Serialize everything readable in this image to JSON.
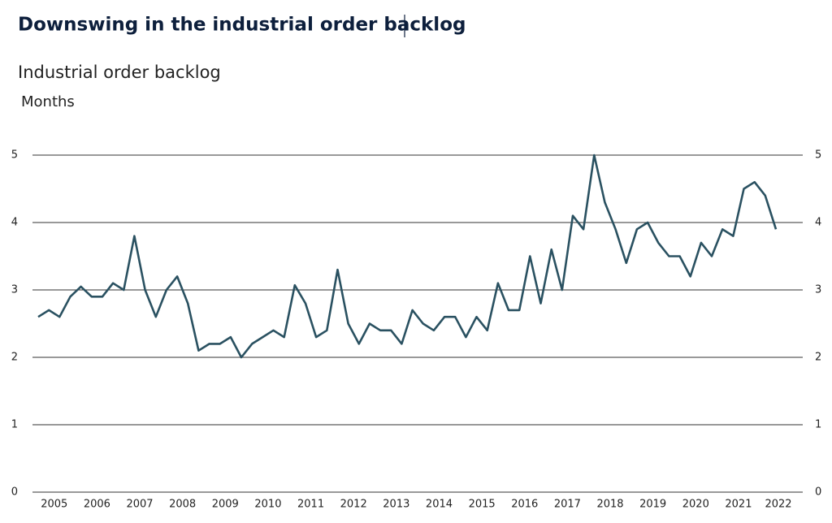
{
  "chart_data": {
    "type": "line",
    "title": "Downswing in the industrial order backlog",
    "subtitle": "Industrial order backlog",
    "y_label": "Months",
    "categories": [
      "2005",
      null,
      null,
      null,
      "2006",
      null,
      null,
      null,
      "2007",
      null,
      null,
      null,
      "2008",
      null,
      null,
      null,
      "2009",
      null,
      null,
      null,
      "2010",
      null,
      null,
      null,
      "2011",
      null,
      null,
      null,
      "2012",
      null,
      null,
      null,
      "2013",
      null,
      null,
      null,
      "2014",
      null,
      null,
      null,
      "2015",
      null,
      null,
      null,
      "2016",
      null,
      null,
      null,
      "2017",
      null,
      null,
      null,
      "2018",
      null,
      null,
      null,
      "2019",
      null,
      null,
      null,
      "2020",
      null,
      null,
      null,
      "2021",
      null,
      null,
      null,
      "2022",
      null
    ],
    "series": [
      {
        "name": "Industrial order backlog",
        "color": "#2a5161",
        "values": [
          2.6,
          2.7,
          2.6,
          2.9,
          3.05,
          2.9,
          2.9,
          3.1,
          3.0,
          3.8,
          3.0,
          2.6,
          3.0,
          3.2,
          2.8,
          2.1,
          2.2,
          2.2,
          2.3,
          2.0,
          2.2,
          2.3,
          2.4,
          2.3,
          3.07,
          2.8,
          2.3,
          2.4,
          3.3,
          2.5,
          2.2,
          2.5,
          2.4,
          2.4,
          2.2,
          2.7,
          2.5,
          2.4,
          2.6,
          2.6,
          2.3,
          2.6,
          2.4,
          3.1,
          2.7,
          2.7,
          3.5,
          2.8,
          3.6,
          3.0,
          4.1,
          3.9,
          5.0,
          4.3,
          3.9,
          3.4,
          3.9,
          4.0,
          3.7,
          3.5,
          3.5,
          3.2,
          3.7,
          3.5,
          3.9,
          3.8,
          4.5,
          4.6,
          4.4,
          3.9
        ]
      }
    ],
    "ylim": [
      0,
      5
    ],
    "yticks": [
      0,
      1,
      2,
      3,
      4,
      5
    ],
    "grid": true
  }
}
